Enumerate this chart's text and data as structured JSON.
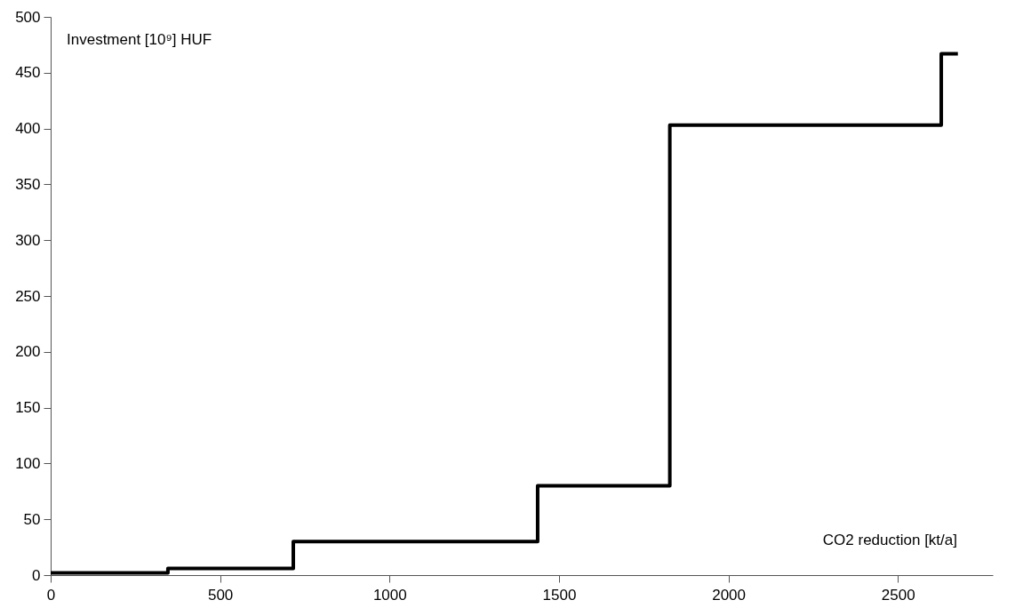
{
  "chart_data": {
    "type": "step",
    "xlabel": "CO2 reduction [kt/a]",
    "ylabel": "Investment [10⁹] HUF",
    "x": [
      0,
      346,
      716,
      1437,
      1827,
      2628,
      2677
    ],
    "series": [
      {
        "color": "#000000",
        "values": [
          2,
          6,
          30,
          80,
          403,
          467,
          467
        ]
      }
    ],
    "xlim": [
      0,
      2780
    ],
    "xticks": [
      0,
      500,
      1000,
      1500,
      2000,
      2500
    ],
    "ylim": [
      0,
      500
    ],
    "yticks": [
      0,
      50,
      100,
      150,
      200,
      250,
      300,
      350,
      400,
      450,
      500
    ],
    "grid": false,
    "marker": "none",
    "line_style": "solid"
  }
}
